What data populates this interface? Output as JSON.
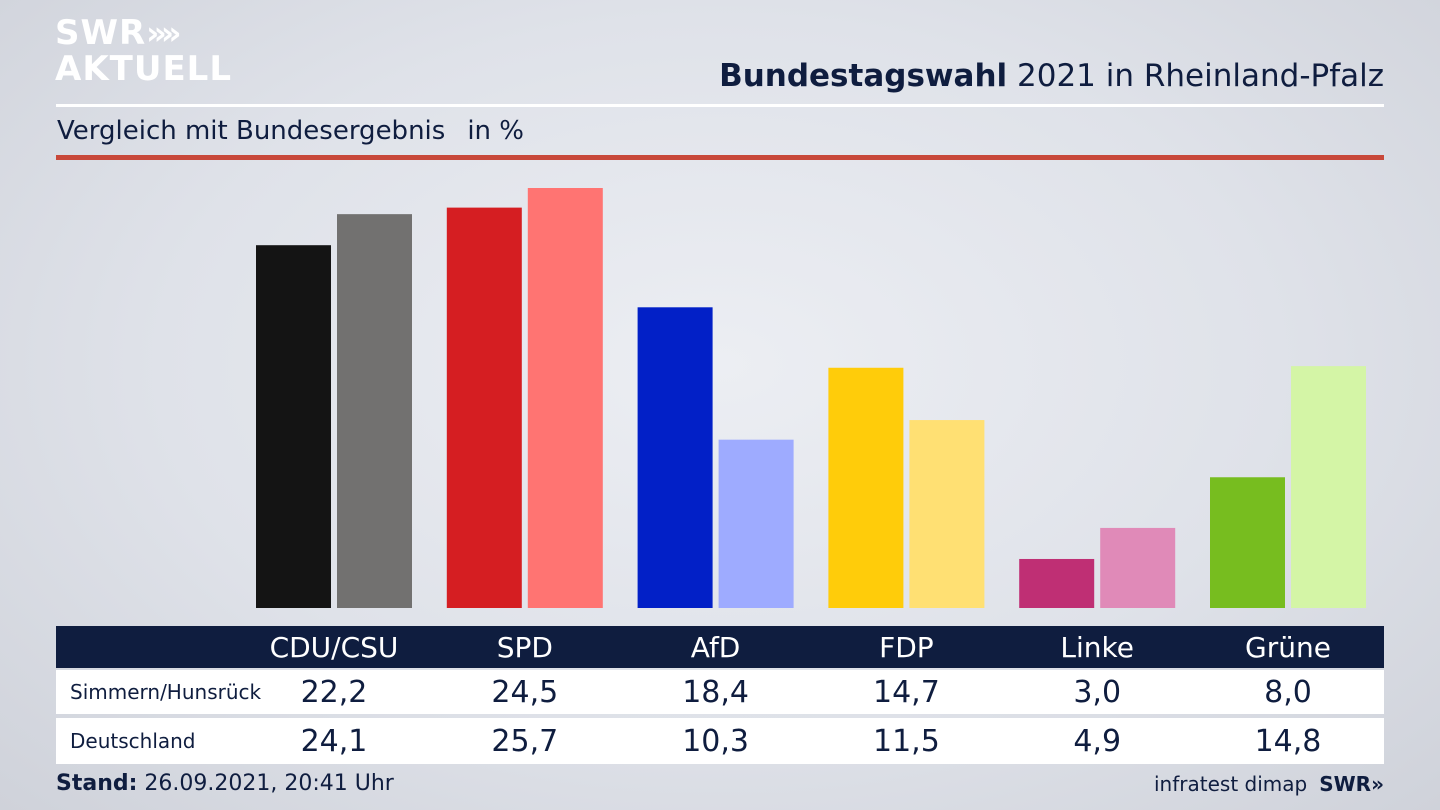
{
  "logo": {
    "line1": "SWR",
    "arrows": "»",
    "line2": "AKTUELL"
  },
  "header": {
    "title_bold": "Bundestagswahl",
    "title_rest": " 2021 in Rheinland-Pfalz",
    "subtitle": "Vergleich mit Bundesergebnis",
    "unit": "in %"
  },
  "footer": {
    "stand_label": "Stand:",
    "stand_value": " 26.09.2021, 20:41 Uhr",
    "source": "infratest dimap",
    "brand": "SWR»"
  },
  "chart_data": {
    "type": "bar",
    "categories": [
      "CDU/CSU",
      "SPD",
      "AfD",
      "FDP",
      "Linke",
      "Grüne"
    ],
    "series": [
      {
        "name": "Simmern/Hunsrück",
        "values": [
          22.2,
          24.5,
          18.4,
          14.7,
          3.0,
          8.0
        ]
      },
      {
        "name": "Deutschland",
        "values": [
          24.1,
          25.7,
          10.3,
          11.5,
          4.9,
          14.8
        ]
      }
    ],
    "display_values": [
      [
        "22,2",
        "24,5",
        "18,4",
        "14,7",
        "3,0",
        "8,0"
      ],
      [
        "24,1",
        "25,7",
        "10,3",
        "11,5",
        "4,9",
        "14,8"
      ]
    ],
    "colors": [
      [
        "#141414",
        "#727170"
      ],
      [
        "#d51e22",
        "#ff7472"
      ],
      [
        "#0220c7",
        "#9eabff"
      ],
      [
        "#ffcc0a",
        "#ffe073"
      ],
      [
        "#bf2f74",
        "#e08ab8"
      ],
      [
        "#77bd1f",
        "#d4f5a6"
      ]
    ],
    "ylim": [
      0,
      25.7
    ],
    "grid": false,
    "legend": "table-below"
  }
}
